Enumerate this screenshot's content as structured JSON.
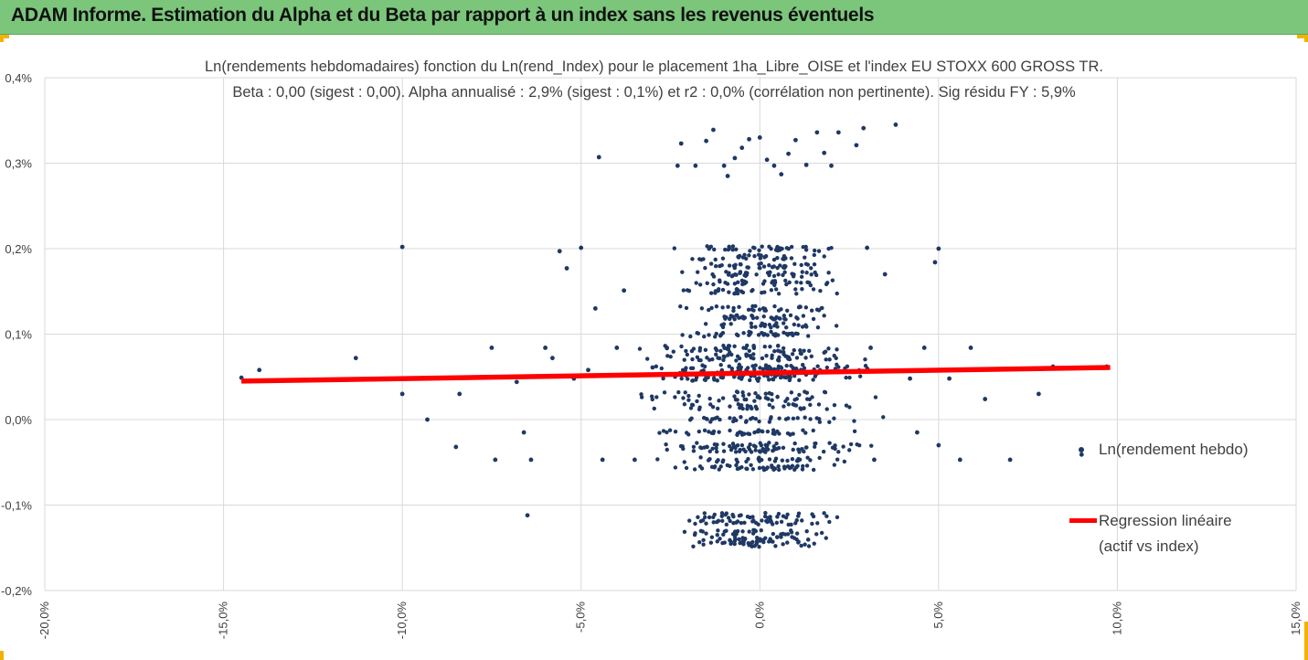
{
  "banner": {
    "title": "ADAM Informe. Estimation du Alpha et du Beta par rapport à un index sans les revenus éventuels",
    "color": "#7bc67b"
  },
  "chart_data": {
    "type": "scatter",
    "title_line1": "Ln(rendements hebdomadaires) fonction du Ln(rend_Index) pour le placement 1ha_Libre_OISE et l'index EU STOXX 600 GROSS TR.",
    "title_line2": "Beta : 0,00 (sigest : 0,00).  Alpha annualisé : 2,9% (sigest : 0,1%) et r2 : 0,0% (corrélation non pertinente). Sig résidu FY : 5,9%",
    "xlabel": "",
    "ylabel": "",
    "xlim": [
      -20,
      15
    ],
    "ylim": [
      -0.2,
      0.4
    ],
    "x_ticks": [
      -20,
      -15,
      -10,
      -5,
      0,
      5,
      10,
      15
    ],
    "x_tick_labels": [
      "-20,0%",
      "-15,0%",
      "-10,0%",
      "-5,0%",
      "0,0%",
      "5,0%",
      "10,0%",
      "15,0%"
    ],
    "y_ticks": [
      -0.2,
      -0.1,
      0.0,
      0.1,
      0.2,
      0.3,
      0.4
    ],
    "y_tick_labels": [
      "-0,2%",
      "-0,1%",
      "0,0%",
      "0,1%",
      "0,2%",
      "0,3%",
      "0,4%"
    ],
    "grid": true,
    "legend_position": "right",
    "series": [
      {
        "name": "Ln(rendement hebdo)",
        "kind": "points",
        "color": "#1f3864",
        "points": [
          [
            -14.5,
            0.049
          ],
          [
            -14.0,
            0.058
          ],
          [
            -11.3,
            0.072
          ],
          [
            -10.0,
            0.03
          ],
          [
            -10.0,
            0.202
          ],
          [
            -9.3,
            0.0
          ],
          [
            -8.5,
            -0.032
          ],
          [
            -8.4,
            0.03
          ],
          [
            -7.5,
            0.084
          ],
          [
            -7.4,
            -0.047
          ],
          [
            -6.8,
            0.044
          ],
          [
            -6.6,
            -0.015
          ],
          [
            -6.5,
            -0.112
          ],
          [
            -6.4,
            -0.047
          ],
          [
            -6.0,
            0.084
          ],
          [
            -5.8,
            0.072
          ],
          [
            -5.6,
            0.197
          ],
          [
            -5.4,
            0.177
          ],
          [
            -5.2,
            0.048
          ],
          [
            -5.0,
            0.201
          ],
          [
            -4.8,
            0.058
          ],
          [
            -4.6,
            0.13
          ],
          [
            -4.5,
            0.307
          ],
          [
            -4.4,
            -0.047
          ],
          [
            -4.0,
            0.084
          ],
          [
            -3.8,
            0.151
          ],
          [
            -3.5,
            -0.047
          ],
          [
            -3.0,
            0.061
          ],
          [
            -2.6,
            0.084
          ],
          [
            -2.2,
            0.323
          ],
          [
            -2.3,
            0.297
          ],
          [
            -1.8,
            0.297
          ],
          [
            -1.5,
            0.326
          ],
          [
            -1.3,
            0.339
          ],
          [
            -1.0,
            0.297
          ],
          [
            -0.9,
            0.285
          ],
          [
            -0.7,
            0.306
          ],
          [
            -0.5,
            0.318
          ],
          [
            -0.3,
            0.328
          ],
          [
            0.0,
            0.33
          ],
          [
            0.2,
            0.304
          ],
          [
            0.4,
            0.297
          ],
          [
            0.6,
            0.287
          ],
          [
            0.8,
            0.311
          ],
          [
            1.0,
            0.327
          ],
          [
            1.3,
            0.298
          ],
          [
            1.6,
            0.336
          ],
          [
            1.8,
            0.312
          ],
          [
            2.0,
            0.297
          ],
          [
            2.2,
            0.336
          ],
          [
            2.7,
            0.321
          ],
          [
            2.9,
            0.341
          ],
          [
            3.0,
            0.201
          ],
          [
            3.1,
            0.084
          ],
          [
            3.2,
            -0.047
          ],
          [
            3.5,
            0.17
          ],
          [
            3.8,
            0.345
          ],
          [
            4.2,
            0.048
          ],
          [
            4.4,
            -0.015
          ],
          [
            4.6,
            0.084
          ],
          [
            4.9,
            0.184
          ],
          [
            5.0,
            -0.03
          ],
          [
            5.0,
            0.2
          ],
          [
            5.3,
            0.048
          ],
          [
            5.6,
            -0.047
          ],
          [
            5.9,
            0.084
          ],
          [
            6.3,
            0.024
          ],
          [
            7.0,
            -0.047
          ],
          [
            7.8,
            0.03
          ],
          [
            8.2,
            0.062
          ],
          [
            9.0,
            -0.041
          ],
          [
            9.7,
            0.062
          ]
        ]
      },
      {
        "name": "Regression linéaire\n(actif vs index)",
        "legend_line1": "Regression linéaire",
        "legend_line2": "(actif vs index)",
        "kind": "line",
        "color": "#ff0000",
        "x": [
          -14.5,
          9.8
        ],
        "y": [
          0.045,
          0.061
        ]
      }
    ]
  }
}
